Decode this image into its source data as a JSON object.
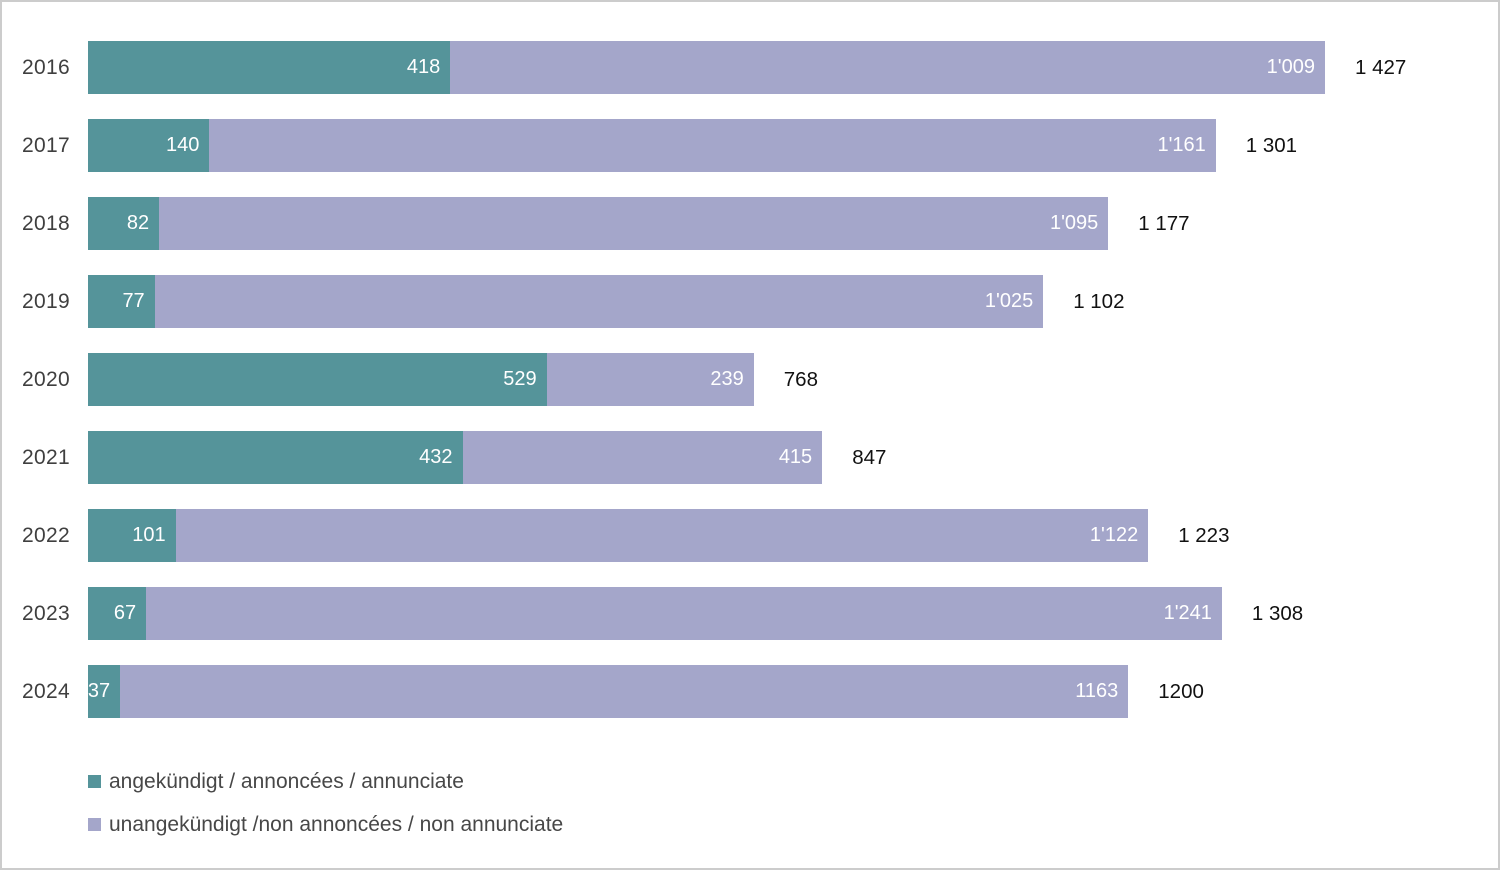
{
  "chart_data": {
    "type": "bar",
    "orientation": "horizontal",
    "stacked": true,
    "grid": false,
    "axes_shown": false,
    "legend_position": "bottom-left",
    "categories": [
      "2016",
      "2017",
      "2018",
      "2019",
      "2020",
      "2021",
      "2022",
      "2023",
      "2024"
    ],
    "series": [
      {
        "key": "announced",
        "name": "angekündigt / annoncées / annunciate",
        "color": "#55949A",
        "values": [
          418,
          140,
          82,
          77,
          529,
          432,
          101,
          67,
          37
        ],
        "labels": [
          "418",
          "140",
          "82",
          "77",
          "529",
          "432",
          "101",
          "67",
          "37"
        ]
      },
      {
        "key": "unannounced",
        "name": "unangekündigt /non annoncées / non annunciate",
        "color": "#A4A6CA",
        "values": [
          1009,
          1161,
          1095,
          1025,
          239,
          415,
          1122,
          1241,
          1163
        ],
        "labels": [
          "1'009",
          "1'161",
          "1'095",
          "1'025",
          "239",
          "415",
          "1'122",
          "1'241",
          "1163"
        ]
      }
    ],
    "totals": [
      1427,
      1301,
      1177,
      1102,
      768,
      847,
      1223,
      1308,
      1200
    ],
    "total_labels": [
      "1 427",
      "1 301",
      "1 177",
      "1 102",
      "768",
      "847",
      "1 223",
      "1 308",
      "1200"
    ],
    "xmax": 1427
  },
  "legend": {
    "announced": "angekündigt / annoncées / annunciate",
    "unannounced": "unangekündigt /non annoncées / non annunciate"
  },
  "colors": {
    "announced": "#55949A",
    "unannounced": "#A4A6CA",
    "year_label": "#3f3f3f",
    "total_label": "#111111",
    "page_border": "#cccccc",
    "value_label": "#ffffff"
  }
}
